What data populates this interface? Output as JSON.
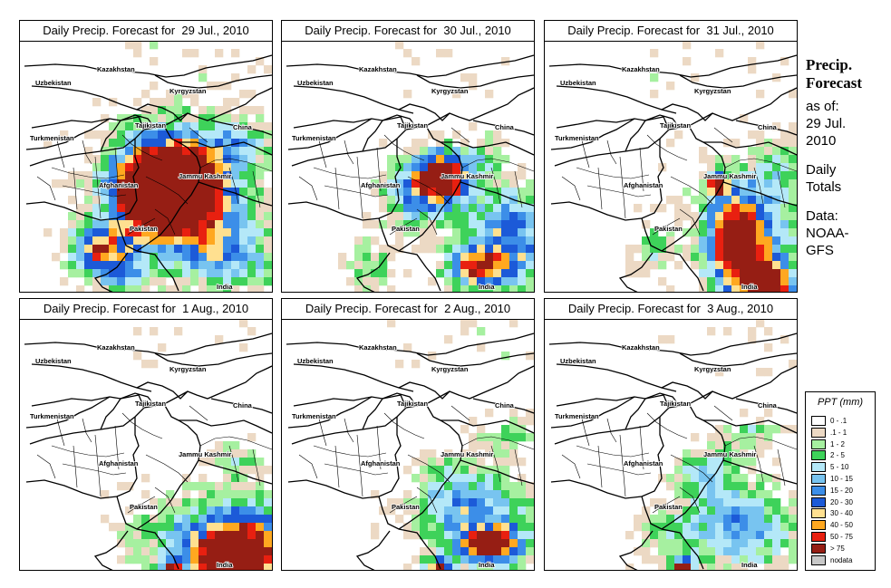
{
  "panels": [
    {
      "title": "Daily Precip. Forecast for  29 Jul., 2010",
      "scenario": 0
    },
    {
      "title": "Daily Precip. Forecast for  30 Jul., 2010",
      "scenario": 1
    },
    {
      "title": "Daily Precip. Forecast for  31 Jul., 2010",
      "scenario": 2
    },
    {
      "title": "Daily Precip. Forecast for  1 Aug., 2010",
      "scenario": 3
    },
    {
      "title": "Daily Precip. Forecast for  2 Aug., 2010",
      "scenario": 4
    },
    {
      "title": "Daily Precip. Forecast for  3 Aug., 2010",
      "scenario": 5
    }
  ],
  "map_labels": {
    "uzbekistan": "Uzbekistan",
    "kazakhstan": "Kazakhstan",
    "kyrgyzstan": "Kyrgyzstan",
    "tajikistan": "Tajikistan",
    "turkmenistan": "Turkmenistan",
    "china": "China",
    "afghanistan": "Afghanistan",
    "jammu_kashmir": "Jammu Kashmir",
    "pakistan": "Pakistan",
    "india": "India"
  },
  "side": {
    "heading_line1": "Precip.",
    "heading_line2": "Forecast",
    "asof_line1": "as of:",
    "asof_line2": "29 Jul.",
    "asof_line3": "2010",
    "daily_line1": "Daily",
    "daily_line2": "Totals",
    "source_line1": "Data:",
    "source_line2": "NOAA-",
    "source_line3": "GFS"
  },
  "legend": {
    "title": "PPT (mm)",
    "items": [
      {
        "label": "0 - .1",
        "color": "#ffffff"
      },
      {
        "label": ".1 - 1",
        "color": "#ecd9c4"
      },
      {
        "label": "1 - 2",
        "color": "#a6f0a0"
      },
      {
        "label": "2 - 5",
        "color": "#3ed25a"
      },
      {
        "label": "5 - 10",
        "color": "#b4e8f8"
      },
      {
        "label": "10 - 15",
        "color": "#78c4f0"
      },
      {
        "label": "15 - 20",
        "color": "#3c8ee8"
      },
      {
        "label": "20 - 30",
        "color": "#1c5ad8"
      },
      {
        "label": "30 - 40",
        "color": "#ffe090"
      },
      {
        "label": "40 - 50",
        "color": "#ffa820"
      },
      {
        "label": "50 - 75",
        "color": "#e82010"
      },
      {
        "label": "> 75",
        "color": "#961e14"
      },
      {
        "label": "nodata",
        "color": "#c8c8c8"
      }
    ]
  }
}
